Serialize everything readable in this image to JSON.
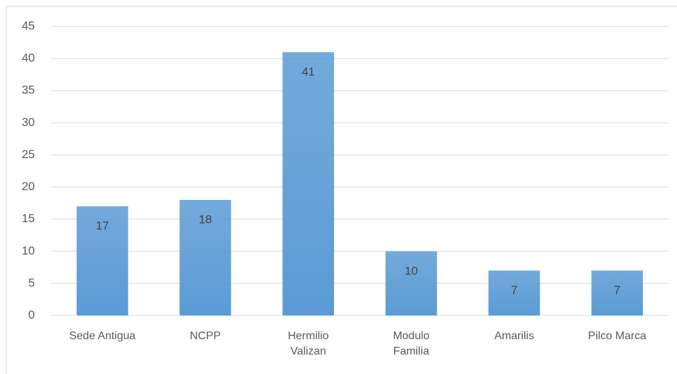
{
  "chart_data": {
    "type": "bar",
    "categories": [
      "Sede Antigua",
      "NCPP",
      "Hermilio Valizan",
      "Modulo Familia",
      "Amarilis",
      "Pilco Marca"
    ],
    "values": [
      17,
      18,
      41,
      10,
      7,
      7
    ],
    "color": "#5b9bd5",
    "ylim": [
      0,
      45
    ],
    "yticks": [
      0,
      5,
      10,
      15,
      20,
      25,
      30,
      35,
      40,
      45
    ],
    "grid": true
  }
}
